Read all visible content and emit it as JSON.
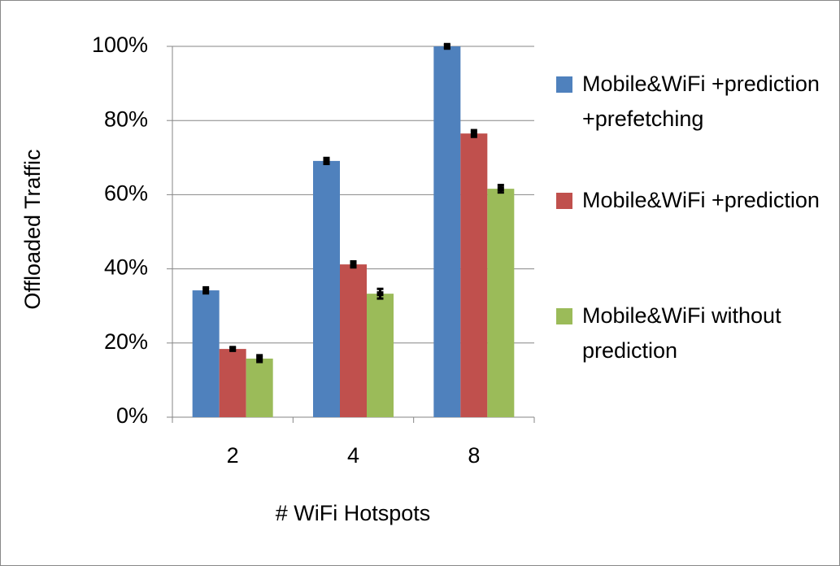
{
  "chart_data": {
    "type": "bar",
    "x_label": "# WiFi Hotspots",
    "y_label": "Offloaded Traffic",
    "categories": [
      "2",
      "4",
      "8"
    ],
    "series": [
      {
        "name": "Mobile&WiFi +prediction +prefetching",
        "color": "#4f81bd",
        "values": [
          34.2,
          69.1,
          100
        ],
        "errors": [
          0.8,
          0.8,
          0.6
        ]
      },
      {
        "name": "Mobile&WiFi +prediction",
        "color": "#c0504d",
        "values": [
          18.4,
          41.2,
          76.5
        ],
        "errors": [
          0.5,
          0.8,
          0.9
        ]
      },
      {
        "name": "Mobile&WiFi without prediction",
        "color": "#9bbb59",
        "values": [
          15.8,
          33.3,
          61.6
        ],
        "errors": [
          0.9,
          1.3,
          1.0
        ]
      }
    ],
    "ylim": [
      0,
      100
    ],
    "yticks": [
      {
        "value": 0,
        "label": "0%"
      },
      {
        "value": 20,
        "label": "20%"
      },
      {
        "value": 40,
        "label": "40%"
      },
      {
        "value": 60,
        "label": "60%"
      },
      {
        "value": 80,
        "label": "80%"
      },
      {
        "value": 100,
        "label": "100%"
      }
    ],
    "grid": true
  }
}
